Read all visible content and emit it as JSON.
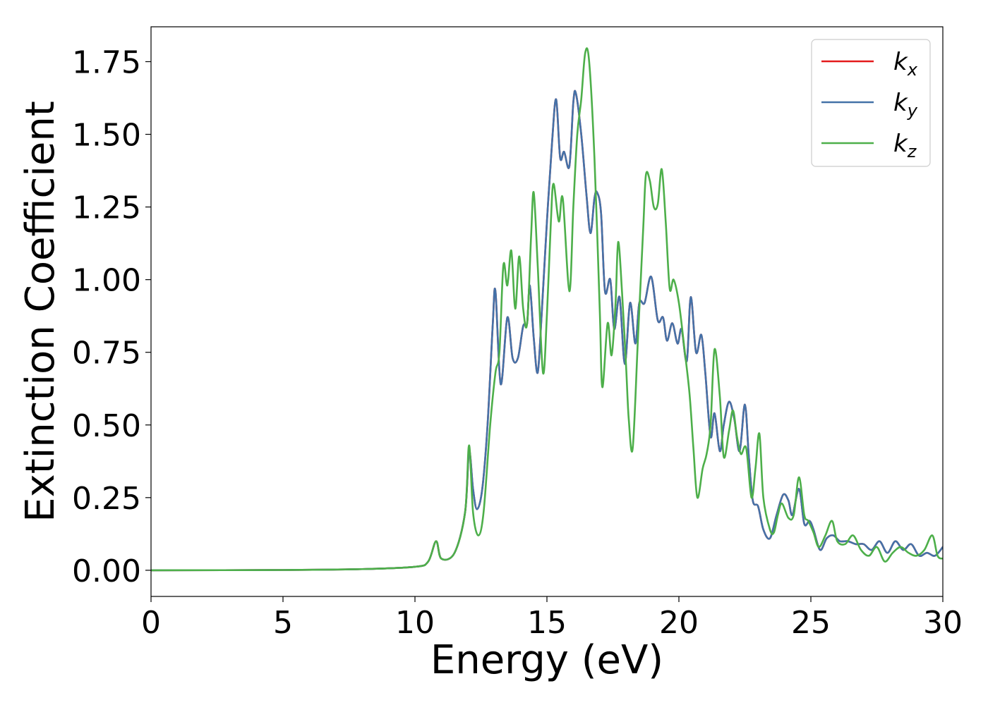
{
  "chart_data": {
    "type": "line",
    "xlabel": "Energy (eV)",
    "ylabel": "Extinction Coefficient",
    "xlim": [
      0,
      30
    ],
    "ylim": [
      -0.09,
      1.87
    ],
    "xticks": [
      0,
      5,
      10,
      15,
      20,
      25,
      30
    ],
    "xtick_labels": [
      "0",
      "5",
      "10",
      "15",
      "20",
      "25",
      "30"
    ],
    "yticks": [
      0.0,
      0.25,
      0.5,
      0.75,
      1.0,
      1.25,
      1.5,
      1.75
    ],
    "ytick_labels": [
      "0.00",
      "0.25",
      "0.50",
      "0.75",
      "1.00",
      "1.25",
      "1.50",
      "1.75"
    ],
    "grid": false,
    "legend_position": "top-right",
    "series": [
      {
        "name": "k",
        "subscript": "x",
        "color": "#e41a1c",
        "points": [
          [
            0,
            0.0
          ],
          [
            5,
            0.001
          ],
          [
            8,
            0.004
          ],
          [
            10,
            0.012
          ],
          [
            10.5,
            0.03
          ],
          [
            10.8,
            0.1
          ],
          [
            11.0,
            0.04
          ],
          [
            11.5,
            0.06
          ],
          [
            11.9,
            0.2
          ],
          [
            12.05,
            0.41
          ],
          [
            12.2,
            0.28
          ],
          [
            12.35,
            0.21
          ],
          [
            12.55,
            0.28
          ],
          [
            12.75,
            0.5
          ],
          [
            12.95,
            0.85
          ],
          [
            13.05,
            0.96
          ],
          [
            13.25,
            0.64
          ],
          [
            13.5,
            0.87
          ],
          [
            13.7,
            0.73
          ],
          [
            13.9,
            0.73
          ],
          [
            14.1,
            0.84
          ],
          [
            14.25,
            0.85
          ],
          [
            14.35,
            0.98
          ],
          [
            14.5,
            0.8
          ],
          [
            14.65,
            0.68
          ],
          [
            14.8,
            0.88
          ],
          [
            15.0,
            1.2
          ],
          [
            15.2,
            1.48
          ],
          [
            15.35,
            1.62
          ],
          [
            15.5,
            1.42
          ],
          [
            15.65,
            1.44
          ],
          [
            15.85,
            1.39
          ],
          [
            16.0,
            1.61
          ],
          [
            16.1,
            1.64
          ],
          [
            16.3,
            1.5
          ],
          [
            16.5,
            1.29
          ],
          [
            16.65,
            1.16
          ],
          [
            16.8,
            1.28
          ],
          [
            16.9,
            1.3
          ],
          [
            17.05,
            1.23
          ],
          [
            17.2,
            0.96
          ],
          [
            17.4,
            1.0
          ],
          [
            17.55,
            0.83
          ],
          [
            17.75,
            0.94
          ],
          [
            17.95,
            0.71
          ],
          [
            18.15,
            0.92
          ],
          [
            18.35,
            0.78
          ],
          [
            18.5,
            0.92
          ],
          [
            18.7,
            0.92
          ],
          [
            18.95,
            1.01
          ],
          [
            19.2,
            0.86
          ],
          [
            19.4,
            0.87
          ],
          [
            19.55,
            0.79
          ],
          [
            19.75,
            0.85
          ],
          [
            19.95,
            0.78
          ],
          [
            20.1,
            0.83
          ],
          [
            20.3,
            0.72
          ],
          [
            20.45,
            0.94
          ],
          [
            20.65,
            0.75
          ],
          [
            20.85,
            0.81
          ],
          [
            21.0,
            0.68
          ],
          [
            21.2,
            0.46
          ],
          [
            21.35,
            0.54
          ],
          [
            21.55,
            0.41
          ],
          [
            21.7,
            0.5
          ],
          [
            21.9,
            0.58
          ],
          [
            22.1,
            0.52
          ],
          [
            22.3,
            0.41
          ],
          [
            22.5,
            0.57
          ],
          [
            22.65,
            0.39
          ],
          [
            22.8,
            0.24
          ],
          [
            23.0,
            0.22
          ],
          [
            23.2,
            0.14
          ],
          [
            23.45,
            0.11
          ],
          [
            23.7,
            0.19
          ],
          [
            23.95,
            0.26
          ],
          [
            24.15,
            0.24
          ],
          [
            24.3,
            0.19
          ],
          [
            24.55,
            0.28
          ],
          [
            24.75,
            0.16
          ],
          [
            24.95,
            0.17
          ],
          [
            25.1,
            0.14
          ],
          [
            25.35,
            0.07
          ],
          [
            25.6,
            0.11
          ],
          [
            25.85,
            0.12
          ],
          [
            26.1,
            0.1
          ],
          [
            26.4,
            0.1
          ],
          [
            26.7,
            0.09
          ],
          [
            27.0,
            0.09
          ],
          [
            27.3,
            0.07
          ],
          [
            27.6,
            0.1
          ],
          [
            27.9,
            0.06
          ],
          [
            28.2,
            0.1
          ],
          [
            28.5,
            0.07
          ],
          [
            28.8,
            0.09
          ],
          [
            29.1,
            0.05
          ],
          [
            29.4,
            0.06
          ],
          [
            29.7,
            0.05
          ],
          [
            30,
            0.08
          ]
        ]
      },
      {
        "name": "k",
        "subscript": "y",
        "color": "#4472a8",
        "points": [
          [
            0,
            0.0
          ],
          [
            5,
            0.001
          ],
          [
            8,
            0.004
          ],
          [
            10,
            0.012
          ],
          [
            10.5,
            0.03
          ],
          [
            10.8,
            0.1
          ],
          [
            11.0,
            0.04
          ],
          [
            11.5,
            0.06
          ],
          [
            11.9,
            0.2
          ],
          [
            12.05,
            0.41
          ],
          [
            12.2,
            0.28
          ],
          [
            12.35,
            0.21
          ],
          [
            12.55,
            0.28
          ],
          [
            12.75,
            0.5
          ],
          [
            12.95,
            0.85
          ],
          [
            13.05,
            0.96
          ],
          [
            13.25,
            0.64
          ],
          [
            13.5,
            0.87
          ],
          [
            13.7,
            0.73
          ],
          [
            13.9,
            0.73
          ],
          [
            14.1,
            0.84
          ],
          [
            14.25,
            0.85
          ],
          [
            14.35,
            0.98
          ],
          [
            14.5,
            0.8
          ],
          [
            14.65,
            0.68
          ],
          [
            14.8,
            0.88
          ],
          [
            15.0,
            1.2
          ],
          [
            15.2,
            1.48
          ],
          [
            15.35,
            1.62
          ],
          [
            15.5,
            1.42
          ],
          [
            15.65,
            1.44
          ],
          [
            15.85,
            1.39
          ],
          [
            16.0,
            1.61
          ],
          [
            16.1,
            1.64
          ],
          [
            16.3,
            1.5
          ],
          [
            16.5,
            1.29
          ],
          [
            16.65,
            1.16
          ],
          [
            16.8,
            1.28
          ],
          [
            16.9,
            1.3
          ],
          [
            17.05,
            1.23
          ],
          [
            17.2,
            0.96
          ],
          [
            17.4,
            1.0
          ],
          [
            17.55,
            0.83
          ],
          [
            17.75,
            0.94
          ],
          [
            17.95,
            0.71
          ],
          [
            18.15,
            0.92
          ],
          [
            18.35,
            0.78
          ],
          [
            18.5,
            0.92
          ],
          [
            18.7,
            0.92
          ],
          [
            18.95,
            1.01
          ],
          [
            19.2,
            0.86
          ],
          [
            19.4,
            0.87
          ],
          [
            19.55,
            0.79
          ],
          [
            19.75,
            0.85
          ],
          [
            19.95,
            0.78
          ],
          [
            20.1,
            0.83
          ],
          [
            20.3,
            0.72
          ],
          [
            20.45,
            0.94
          ],
          [
            20.65,
            0.75
          ],
          [
            20.85,
            0.81
          ],
          [
            21.0,
            0.68
          ],
          [
            21.2,
            0.46
          ],
          [
            21.35,
            0.54
          ],
          [
            21.55,
            0.41
          ],
          [
            21.7,
            0.5
          ],
          [
            21.9,
            0.58
          ],
          [
            22.1,
            0.52
          ],
          [
            22.3,
            0.41
          ],
          [
            22.5,
            0.57
          ],
          [
            22.65,
            0.39
          ],
          [
            22.8,
            0.24
          ],
          [
            23.0,
            0.22
          ],
          [
            23.2,
            0.14
          ],
          [
            23.45,
            0.11
          ],
          [
            23.7,
            0.19
          ],
          [
            23.95,
            0.26
          ],
          [
            24.15,
            0.24
          ],
          [
            24.3,
            0.19
          ],
          [
            24.55,
            0.28
          ],
          [
            24.75,
            0.16
          ],
          [
            24.95,
            0.17
          ],
          [
            25.1,
            0.14
          ],
          [
            25.35,
            0.07
          ],
          [
            25.6,
            0.11
          ],
          [
            25.85,
            0.12
          ],
          [
            26.1,
            0.1
          ],
          [
            26.4,
            0.1
          ],
          [
            26.7,
            0.09
          ],
          [
            27.0,
            0.09
          ],
          [
            27.3,
            0.07
          ],
          [
            27.6,
            0.1
          ],
          [
            27.9,
            0.06
          ],
          [
            28.2,
            0.1
          ],
          [
            28.5,
            0.07
          ],
          [
            28.8,
            0.09
          ],
          [
            29.1,
            0.05
          ],
          [
            29.4,
            0.06
          ],
          [
            29.7,
            0.05
          ],
          [
            30,
            0.08
          ]
        ]
      },
      {
        "name": "k",
        "subscript": "z",
        "color": "#4daf4a",
        "points": [
          [
            0,
            0.0
          ],
          [
            5,
            0.001
          ],
          [
            8,
            0.004
          ],
          [
            10,
            0.012
          ],
          [
            10.5,
            0.03
          ],
          [
            10.8,
            0.1
          ],
          [
            11.0,
            0.04
          ],
          [
            11.5,
            0.06
          ],
          [
            11.9,
            0.2
          ],
          [
            12.05,
            0.43
          ],
          [
            12.2,
            0.2
          ],
          [
            12.4,
            0.12
          ],
          [
            12.6,
            0.2
          ],
          [
            12.85,
            0.5
          ],
          [
            13.05,
            0.68
          ],
          [
            13.2,
            0.75
          ],
          [
            13.35,
            1.05
          ],
          [
            13.5,
            0.98
          ],
          [
            13.65,
            1.1
          ],
          [
            13.8,
            0.9
          ],
          [
            13.95,
            1.08
          ],
          [
            14.1,
            0.9
          ],
          [
            14.25,
            0.85
          ],
          [
            14.4,
            1.15
          ],
          [
            14.5,
            1.3
          ],
          [
            14.65,
            1.05
          ],
          [
            14.85,
            0.68
          ],
          [
            15.0,
            0.88
          ],
          [
            15.15,
            1.2
          ],
          [
            15.25,
            1.33
          ],
          [
            15.45,
            1.2
          ],
          [
            15.6,
            1.28
          ],
          [
            15.85,
            0.96
          ],
          [
            16.0,
            1.25
          ],
          [
            16.15,
            1.5
          ],
          [
            16.3,
            1.62
          ],
          [
            16.45,
            1.78
          ],
          [
            16.6,
            1.75
          ],
          [
            16.8,
            1.42
          ],
          [
            17.0,
            0.9
          ],
          [
            17.1,
            0.63
          ],
          [
            17.3,
            0.85
          ],
          [
            17.45,
            0.74
          ],
          [
            17.6,
            0.92
          ],
          [
            17.7,
            1.13
          ],
          [
            17.85,
            0.95
          ],
          [
            18.0,
            0.7
          ],
          [
            18.1,
            0.52
          ],
          [
            18.25,
            0.42
          ],
          [
            18.45,
            0.8
          ],
          [
            18.65,
            1.18
          ],
          [
            18.75,
            1.36
          ],
          [
            18.9,
            1.34
          ],
          [
            19.05,
            1.25
          ],
          [
            19.2,
            1.26
          ],
          [
            19.35,
            1.38
          ],
          [
            19.5,
            1.2
          ],
          [
            19.65,
            0.97
          ],
          [
            19.8,
            1.0
          ],
          [
            20.0,
            0.92
          ],
          [
            20.2,
            0.77
          ],
          [
            20.4,
            0.61
          ],
          [
            20.55,
            0.42
          ],
          [
            20.7,
            0.25
          ],
          [
            20.9,
            0.35
          ],
          [
            21.05,
            0.4
          ],
          [
            21.2,
            0.5
          ],
          [
            21.35,
            0.76
          ],
          [
            21.55,
            0.6
          ],
          [
            21.7,
            0.39
          ],
          [
            21.9,
            0.48
          ],
          [
            22.05,
            0.55
          ],
          [
            22.2,
            0.46
          ],
          [
            22.35,
            0.4
          ],
          [
            22.55,
            0.42
          ],
          [
            22.75,
            0.25
          ],
          [
            22.9,
            0.35
          ],
          [
            23.05,
            0.47
          ],
          [
            23.2,
            0.25
          ],
          [
            23.45,
            0.14
          ],
          [
            23.6,
            0.13
          ],
          [
            23.75,
            0.19
          ],
          [
            23.9,
            0.23
          ],
          [
            24.15,
            0.18
          ],
          [
            24.35,
            0.19
          ],
          [
            24.55,
            0.32
          ],
          [
            24.75,
            0.19
          ],
          [
            24.9,
            0.17
          ],
          [
            25.1,
            0.13
          ],
          [
            25.3,
            0.08
          ],
          [
            25.55,
            0.12
          ],
          [
            25.8,
            0.17
          ],
          [
            26.0,
            0.1
          ],
          [
            26.3,
            0.09
          ],
          [
            26.6,
            0.12
          ],
          [
            26.9,
            0.07
          ],
          [
            27.2,
            0.05
          ],
          [
            27.5,
            0.08
          ],
          [
            27.8,
            0.03
          ],
          [
            28.1,
            0.06
          ],
          [
            28.4,
            0.08
          ],
          [
            28.7,
            0.06
          ],
          [
            29.0,
            0.05
          ],
          [
            29.3,
            0.07
          ],
          [
            29.6,
            0.12
          ],
          [
            29.8,
            0.05
          ],
          [
            30,
            0.04
          ]
        ]
      }
    ]
  }
}
